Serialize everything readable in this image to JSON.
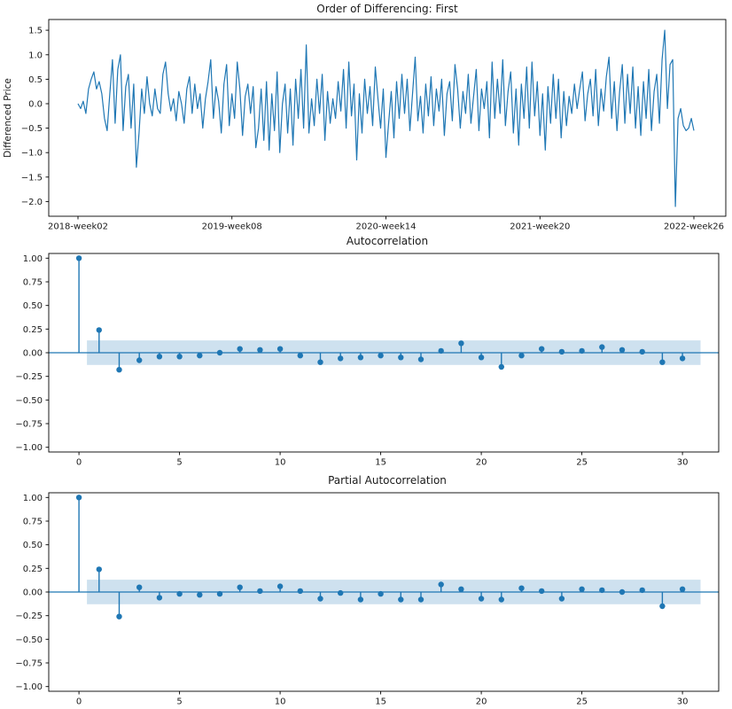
{
  "figure": {
    "accent": "#1f77b4",
    "band_color": "rgba(31,119,180,0.22)",
    "axis_color": "#000000",
    "text_color": "#1a1a1a",
    "background": "#ffffff"
  },
  "chart_data": [
    {
      "id": "diff",
      "type": "line",
      "title": "Order of Differencing: First",
      "xlabel": "",
      "ylabel": "Differenced Price",
      "xlim": [
        -11,
        244
      ],
      "ylim": [
        -2.3,
        1.72
      ],
      "xticks": {
        "values": [
          0,
          58,
          116,
          174,
          232
        ],
        "labels": [
          "2018-week02",
          "2019-week08",
          "2020-week14",
          "2021-week20",
          "2022-week26"
        ]
      },
      "yticks": {
        "values": [
          1.5,
          1.0,
          0.5,
          0.0,
          -0.5,
          -1.0,
          -1.5,
          -2.0
        ],
        "labels": [
          "1.5",
          "1.0",
          "0.5",
          "0.0",
          "−0.5",
          "−1.0",
          "−1.5",
          "−2.0"
        ]
      },
      "values": [
        0.0,
        -0.1,
        0.05,
        -0.2,
        0.3,
        0.5,
        0.65,
        0.3,
        0.45,
        0.2,
        -0.3,
        -0.55,
        0.2,
        0.9,
        -0.4,
        0.7,
        1.0,
        -0.55,
        0.35,
        0.6,
        -0.5,
        0.4,
        -1.3,
        -0.6,
        0.3,
        -0.2,
        0.55,
        0.0,
        -0.25,
        0.3,
        -0.1,
        -0.2,
        0.6,
        0.85,
        0.2,
        -0.15,
        0.1,
        -0.35,
        0.25,
        0.0,
        -0.4,
        0.3,
        0.55,
        -0.2,
        0.4,
        -0.1,
        0.2,
        -0.5,
        0.1,
        0.45,
        0.9,
        -0.3,
        0.35,
        0.05,
        -0.6,
        0.4,
        0.8,
        -0.45,
        0.2,
        -0.3,
        0.85,
        0.3,
        -0.65,
        0.15,
        0.4,
        -0.2,
        0.35,
        -0.9,
        -0.5,
        0.3,
        -0.75,
        0.45,
        -0.95,
        0.2,
        -0.55,
        0.65,
        -1.0,
        0.0,
        0.4,
        -0.6,
        0.3,
        -0.85,
        0.5,
        -0.3,
        0.7,
        -0.5,
        1.2,
        -0.6,
        0.1,
        -0.45,
        0.5,
        -0.2,
        0.6,
        -0.75,
        0.25,
        -0.4,
        0.1,
        -0.3,
        0.45,
        -0.15,
        0.7,
        -0.5,
        0.85,
        -0.25,
        0.4,
        -1.15,
        0.2,
        -0.6,
        0.5,
        -0.2,
        0.35,
        -0.45,
        0.75,
        0.1,
        -0.5,
        0.3,
        -1.1,
        -0.4,
        0.25,
        -0.7,
        0.45,
        -0.3,
        0.6,
        -0.2,
        0.5,
        -0.55,
        0.2,
        0.95,
        -0.35,
        0.15,
        -0.6,
        0.4,
        -0.25,
        0.55,
        -0.45,
        0.3,
        -0.15,
        0.5,
        -0.65,
        0.2,
        0.45,
        -0.35,
        0.8,
        0.3,
        -0.5,
        0.25,
        -0.2,
        0.6,
        -0.4,
        0.15,
        0.7,
        -0.55,
        0.3,
        -0.1,
        0.45,
        -0.7,
        0.85,
        -0.3,
        0.5,
        -0.2,
        0.9,
        -0.45,
        0.25,
        0.65,
        -0.6,
        0.3,
        -0.85,
        0.4,
        -0.3,
        0.75,
        -0.5,
        0.85,
        -0.25,
        0.45,
        -0.65,
        0.2,
        -0.95,
        0.35,
        -0.4,
        0.6,
        -0.3,
        0.5,
        -0.7,
        0.25,
        -0.45,
        0.15,
        -0.2,
        0.4,
        -0.1,
        0.3,
        0.65,
        -0.35,
        0.2,
        0.5,
        -0.25,
        0.7,
        -0.45,
        0.3,
        -0.15,
        0.55,
        0.95,
        -0.3,
        0.45,
        -0.55,
        0.25,
        0.8,
        -0.4,
        0.6,
        -0.2,
        0.75,
        -0.5,
        0.35,
        -0.65,
        0.45,
        -0.3,
        0.7,
        -0.55,
        0.25,
        0.6,
        -0.4,
        0.9,
        1.5,
        -0.1,
        0.8,
        0.9,
        -2.1,
        -0.3,
        -0.1,
        -0.45,
        -0.55,
        -0.5,
        -0.3,
        -0.55
      ]
    },
    {
      "id": "acf",
      "type": "stem",
      "title": "Autocorrelation",
      "xlabel": "",
      "ylabel": "",
      "xlim": [
        -1.5,
        31.8
      ],
      "ylim": [
        -1.05,
        1.05
      ],
      "band": {
        "x0": 0.4,
        "x1": 30.9,
        "level": 0.13
      },
      "xticks": {
        "values": [
          0,
          5,
          10,
          15,
          20,
          25,
          30
        ],
        "labels": [
          "0",
          "5",
          "10",
          "15",
          "20",
          "25",
          "30"
        ]
      },
      "yticks": {
        "values": [
          1.0,
          0.75,
          0.5,
          0.25,
          0.0,
          -0.25,
          -0.5,
          -0.75,
          -1.0
        ],
        "labels": [
          "1.00",
          "0.75",
          "0.50",
          "0.25",
          "0.00",
          "−0.25",
          "−0.50",
          "−0.75",
          "−1.00"
        ]
      },
      "lags": [
        0,
        1,
        2,
        3,
        4,
        5,
        6,
        7,
        8,
        9,
        10,
        11,
        12,
        13,
        14,
        15,
        16,
        17,
        18,
        19,
        20,
        21,
        22,
        23,
        24,
        25,
        26,
        27,
        28,
        29,
        30
      ],
      "values": [
        1.0,
        0.24,
        -0.18,
        -0.08,
        -0.04,
        -0.04,
        -0.03,
        0.0,
        0.04,
        0.03,
        0.04,
        -0.03,
        -0.1,
        -0.06,
        -0.05,
        -0.03,
        -0.05,
        -0.07,
        0.02,
        0.1,
        -0.05,
        -0.15,
        -0.03,
        0.04,
        0.01,
        0.02,
        0.06,
        0.03,
        0.01,
        -0.1,
        -0.06
      ]
    },
    {
      "id": "pacf",
      "type": "stem",
      "title": "Partial Autocorrelation",
      "xlabel": "",
      "ylabel": "",
      "xlim": [
        -1.5,
        31.8
      ],
      "ylim": [
        -1.05,
        1.05
      ],
      "band": {
        "x0": 0.4,
        "x1": 30.9,
        "level": 0.13
      },
      "xticks": {
        "values": [
          0,
          5,
          10,
          15,
          20,
          25,
          30
        ],
        "labels": [
          "0",
          "5",
          "10",
          "15",
          "20",
          "25",
          "30"
        ]
      },
      "yticks": {
        "values": [
          1.0,
          0.75,
          0.5,
          0.25,
          0.0,
          -0.25,
          -0.5,
          -0.75,
          -1.0
        ],
        "labels": [
          "1.00",
          "0.75",
          "0.50",
          "0.25",
          "0.00",
          "−0.25",
          "−0.50",
          "−0.75",
          "−1.00"
        ]
      },
      "lags": [
        0,
        1,
        2,
        3,
        4,
        5,
        6,
        7,
        8,
        9,
        10,
        11,
        12,
        13,
        14,
        15,
        16,
        17,
        18,
        19,
        20,
        21,
        22,
        23,
        24,
        25,
        26,
        27,
        28,
        29,
        30
      ],
      "values": [
        1.0,
        0.24,
        -0.26,
        0.05,
        -0.06,
        -0.02,
        -0.03,
        -0.02,
        0.05,
        0.01,
        0.06,
        0.01,
        -0.07,
        -0.01,
        -0.08,
        -0.02,
        -0.08,
        -0.08,
        0.08,
        0.03,
        -0.07,
        -0.08,
        0.04,
        0.01,
        -0.07,
        0.03,
        0.02,
        0.0,
        0.02,
        -0.15,
        0.03
      ]
    }
  ]
}
